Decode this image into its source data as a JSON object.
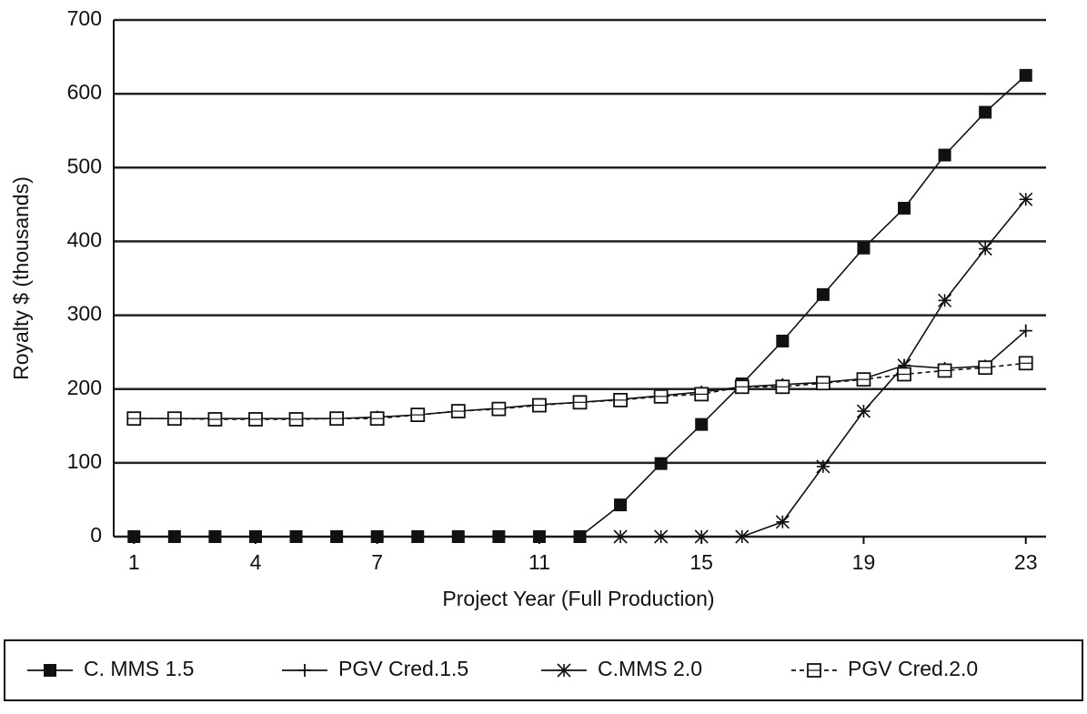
{
  "chart_data": {
    "type": "line",
    "xlabel": "Project Year (Full Production)",
    "ylabel": "Royalty $ (thousands)",
    "x": [
      1,
      2,
      3,
      4,
      5,
      6,
      7,
      8,
      9,
      10,
      11,
      12,
      13,
      14,
      15,
      16,
      17,
      18,
      19,
      20,
      21,
      22,
      23
    ],
    "xlim": [
      0.5,
      23.5
    ],
    "xticks": [
      1,
      4,
      7,
      11,
      15,
      19,
      23
    ],
    "ylim": [
      0,
      700
    ],
    "yticks": [
      0,
      100,
      200,
      300,
      400,
      500,
      600,
      700
    ],
    "grid": true,
    "legend": "bottom",
    "series": [
      {
        "name": "C. MMS 1.5",
        "color": "#111111",
        "marker": "filled-square",
        "dash": "solid",
        "values": [
          0,
          0,
          0,
          0,
          0,
          0,
          0,
          0,
          0,
          0,
          0,
          0,
          43,
          99,
          152,
          207,
          265,
          328,
          391,
          445,
          517,
          575,
          625
        ]
      },
      {
        "name": "PGV Cred.1.5",
        "color": "#111111",
        "marker": "plus",
        "dash": "solid",
        "values": [
          160,
          160,
          160,
          160,
          160,
          160,
          162,
          165,
          170,
          174,
          179,
          182,
          186,
          191,
          196,
          203,
          206,
          209,
          214,
          232,
          228,
          231,
          279
        ]
      },
      {
        "name": "C.MMS 2.0",
        "color": "#111111",
        "marker": "star",
        "dash": "solid",
        "values": [
          null,
          null,
          null,
          null,
          null,
          null,
          null,
          null,
          null,
          null,
          null,
          null,
          0,
          0,
          0,
          0,
          20,
          95,
          170,
          232,
          320,
          390,
          457
        ]
      },
      {
        "name": "PGV Cred.2.0",
        "color": "#111111",
        "marker": "open-square",
        "dash": "dashed",
        "values": [
          160,
          160,
          159,
          159,
          159,
          160,
          160,
          165,
          170,
          173,
          178,
          182,
          185,
          190,
          193,
          203,
          203,
          208,
          213,
          220,
          225,
          229,
          235
        ]
      }
    ]
  }
}
